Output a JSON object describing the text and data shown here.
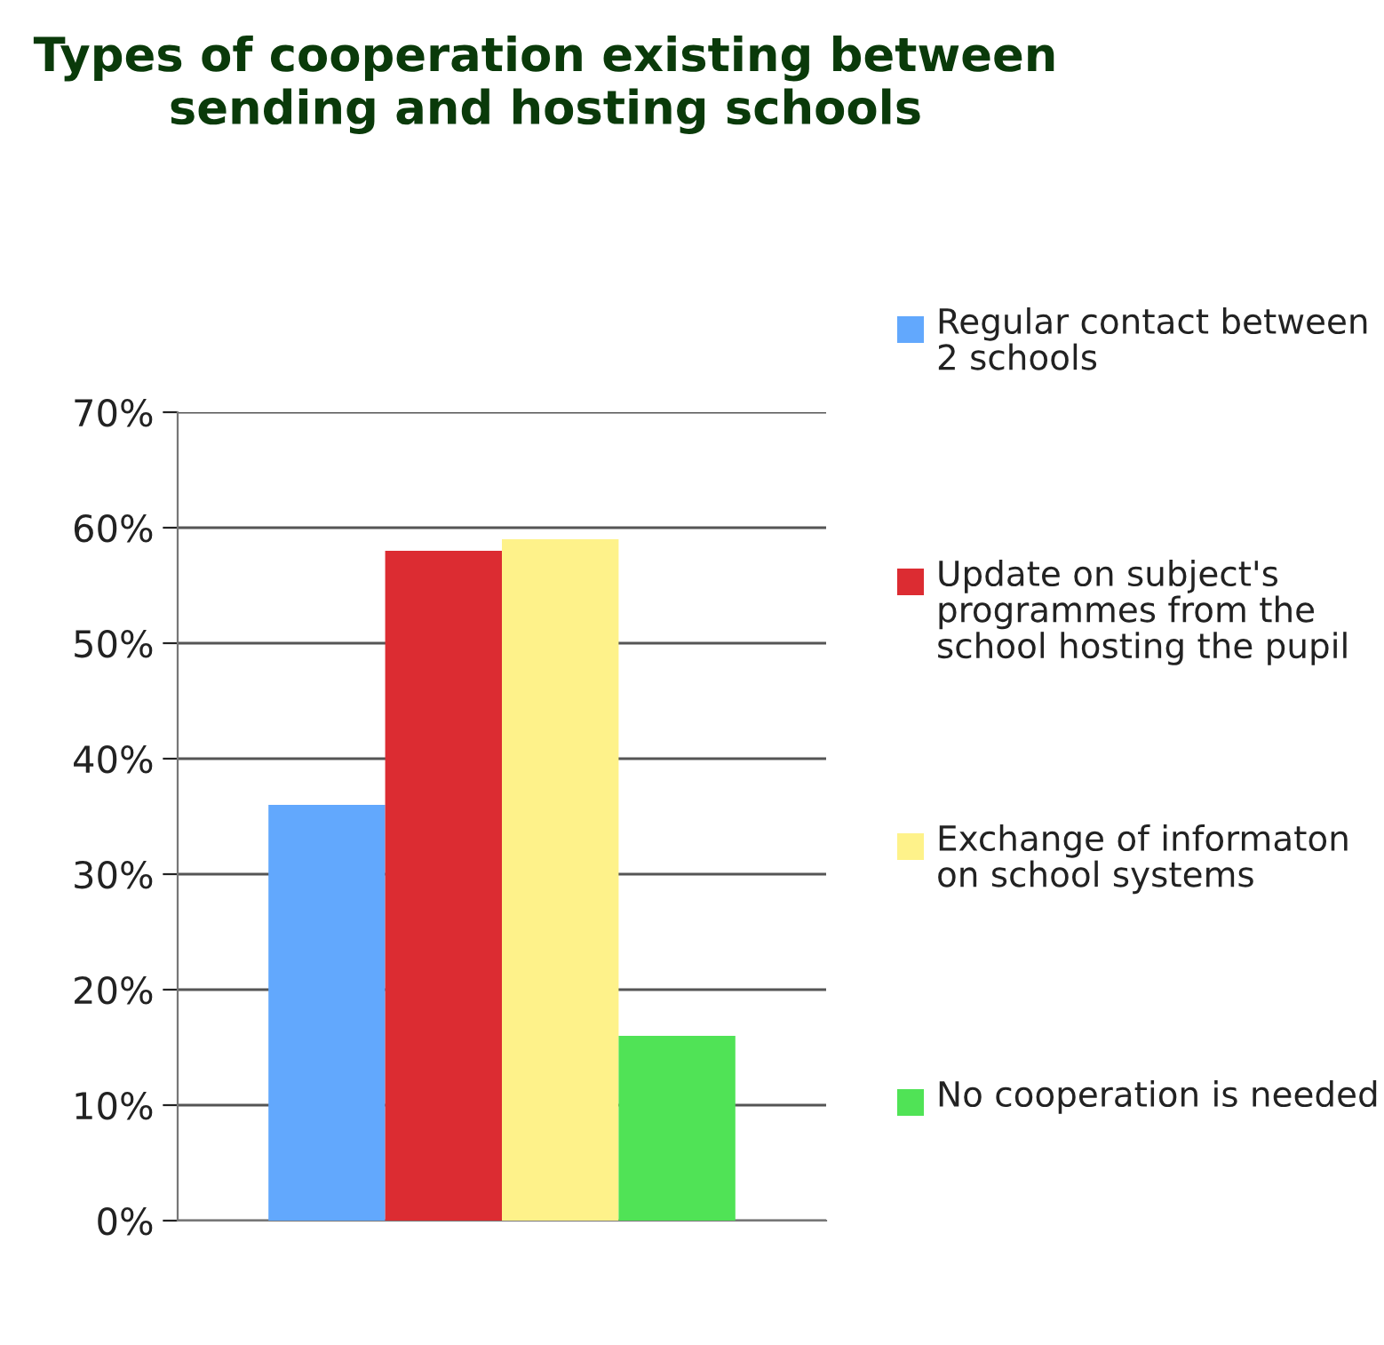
{
  "chart_data": {
    "type": "bar",
    "title": "Types of cooperation existing between sending and hosting schools",
    "categories": [
      null
    ],
    "series": [
      {
        "name": "Regular contact between 2 schools",
        "color": "#62a8fd",
        "values": [
          36
        ]
      },
      {
        "name": "Update on subject's programmes from the school hosting the pupil",
        "color": "#dc2c32",
        "values": [
          58
        ]
      },
      {
        "name": "Exchange of informaton on school systems",
        "color": "#fef28a",
        "values": [
          59
        ]
      },
      {
        "name": "No cooperation is needed",
        "color": "#50e356",
        "values": [
          16
        ]
      }
    ],
    "ylim": [
      0,
      70
    ],
    "yticks": [
      {
        "value": 0,
        "label": "0%"
      },
      {
        "value": 10,
        "label": "10%"
      },
      {
        "value": 20,
        "label": "20%"
      },
      {
        "value": 30,
        "label": "30%"
      },
      {
        "value": 40,
        "label": "40%"
      },
      {
        "value": 50,
        "label": "50%"
      },
      {
        "value": 60,
        "label": "60%"
      },
      {
        "value": 70,
        "label": "70%"
      }
    ],
    "grid": "y",
    "legend": "right"
  }
}
